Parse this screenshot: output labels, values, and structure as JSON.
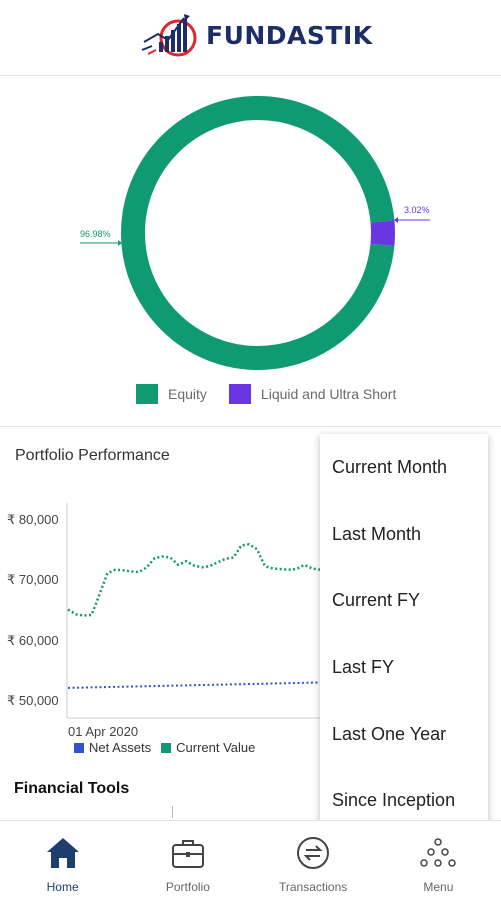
{
  "header": {
    "logo_text": "FUNDASTIK"
  },
  "allocation": {
    "slices": [
      {
        "name": "Equity",
        "percent": 96.98,
        "label": "96.98%",
        "color": "#0f9a73"
      },
      {
        "name": "Liquid and Ultra Short",
        "percent": 3.02,
        "label": "3.02%",
        "color": "#6a36e2"
      }
    ],
    "legend": [
      "Equity",
      "Liquid and Ultra Short"
    ]
  },
  "performance": {
    "title": "Portfolio Performance",
    "y_ticks": [
      "₹ 80,000",
      "₹ 70,000",
      "₹ 60,000",
      "₹ 50,000"
    ],
    "x_label": "01 Apr 2020",
    "legend": [
      {
        "name": "Net Assets",
        "color": "#3355cc"
      },
      {
        "name": "Current Value",
        "color": "#0f9a73"
      }
    ]
  },
  "chart_data": {
    "type": "line",
    "title": "Portfolio Performance",
    "ylim": [
      48000,
      82000
    ],
    "y_ticks": [
      80000,
      70000,
      60000,
      50000
    ],
    "x_tick_labels": [
      "01 Apr 2020"
    ],
    "series": [
      {
        "name": "Current Value",
        "values": [
          65000,
          64200,
          64000,
          64100,
          67500,
          71000,
          71600,
          71500,
          71300,
          71200,
          72000,
          73500,
          73800,
          73600,
          72400,
          73000,
          72300,
          72000,
          72200,
          72800,
          73400,
          73600,
          75600,
          75800,
          75000,
          72200,
          71800,
          71700,
          71600,
          71700,
          72400,
          71800,
          71600
        ]
      },
      {
        "name": "Net Assets",
        "values": [
          52000,
          52050,
          52100,
          52150,
          52200,
          52250,
          52300,
          52350,
          52400,
          52450,
          52500,
          52550,
          52600,
          52650,
          52700,
          52750,
          52800,
          52850,
          52900
        ]
      }
    ]
  },
  "dropdown": {
    "options": [
      "Current Month",
      "Last Month",
      "Current FY",
      "Last FY",
      "Last One Year",
      "Since Inception"
    ]
  },
  "financial_tools": {
    "title": "Financial Tools"
  },
  "nav": {
    "items": [
      {
        "label": "Home",
        "icon": "home-icon",
        "active": true
      },
      {
        "label": "Portfolio",
        "icon": "briefcase-icon",
        "active": false
      },
      {
        "label": "Transactions",
        "icon": "transfer-icon",
        "active": false
      },
      {
        "label": "Menu",
        "icon": "dots-menu-icon",
        "active": false
      }
    ]
  },
  "colors": {
    "brand_navy": "#1d2d6b",
    "accent_red": "#e0252b",
    "nav_active": "#1e3e6e"
  }
}
